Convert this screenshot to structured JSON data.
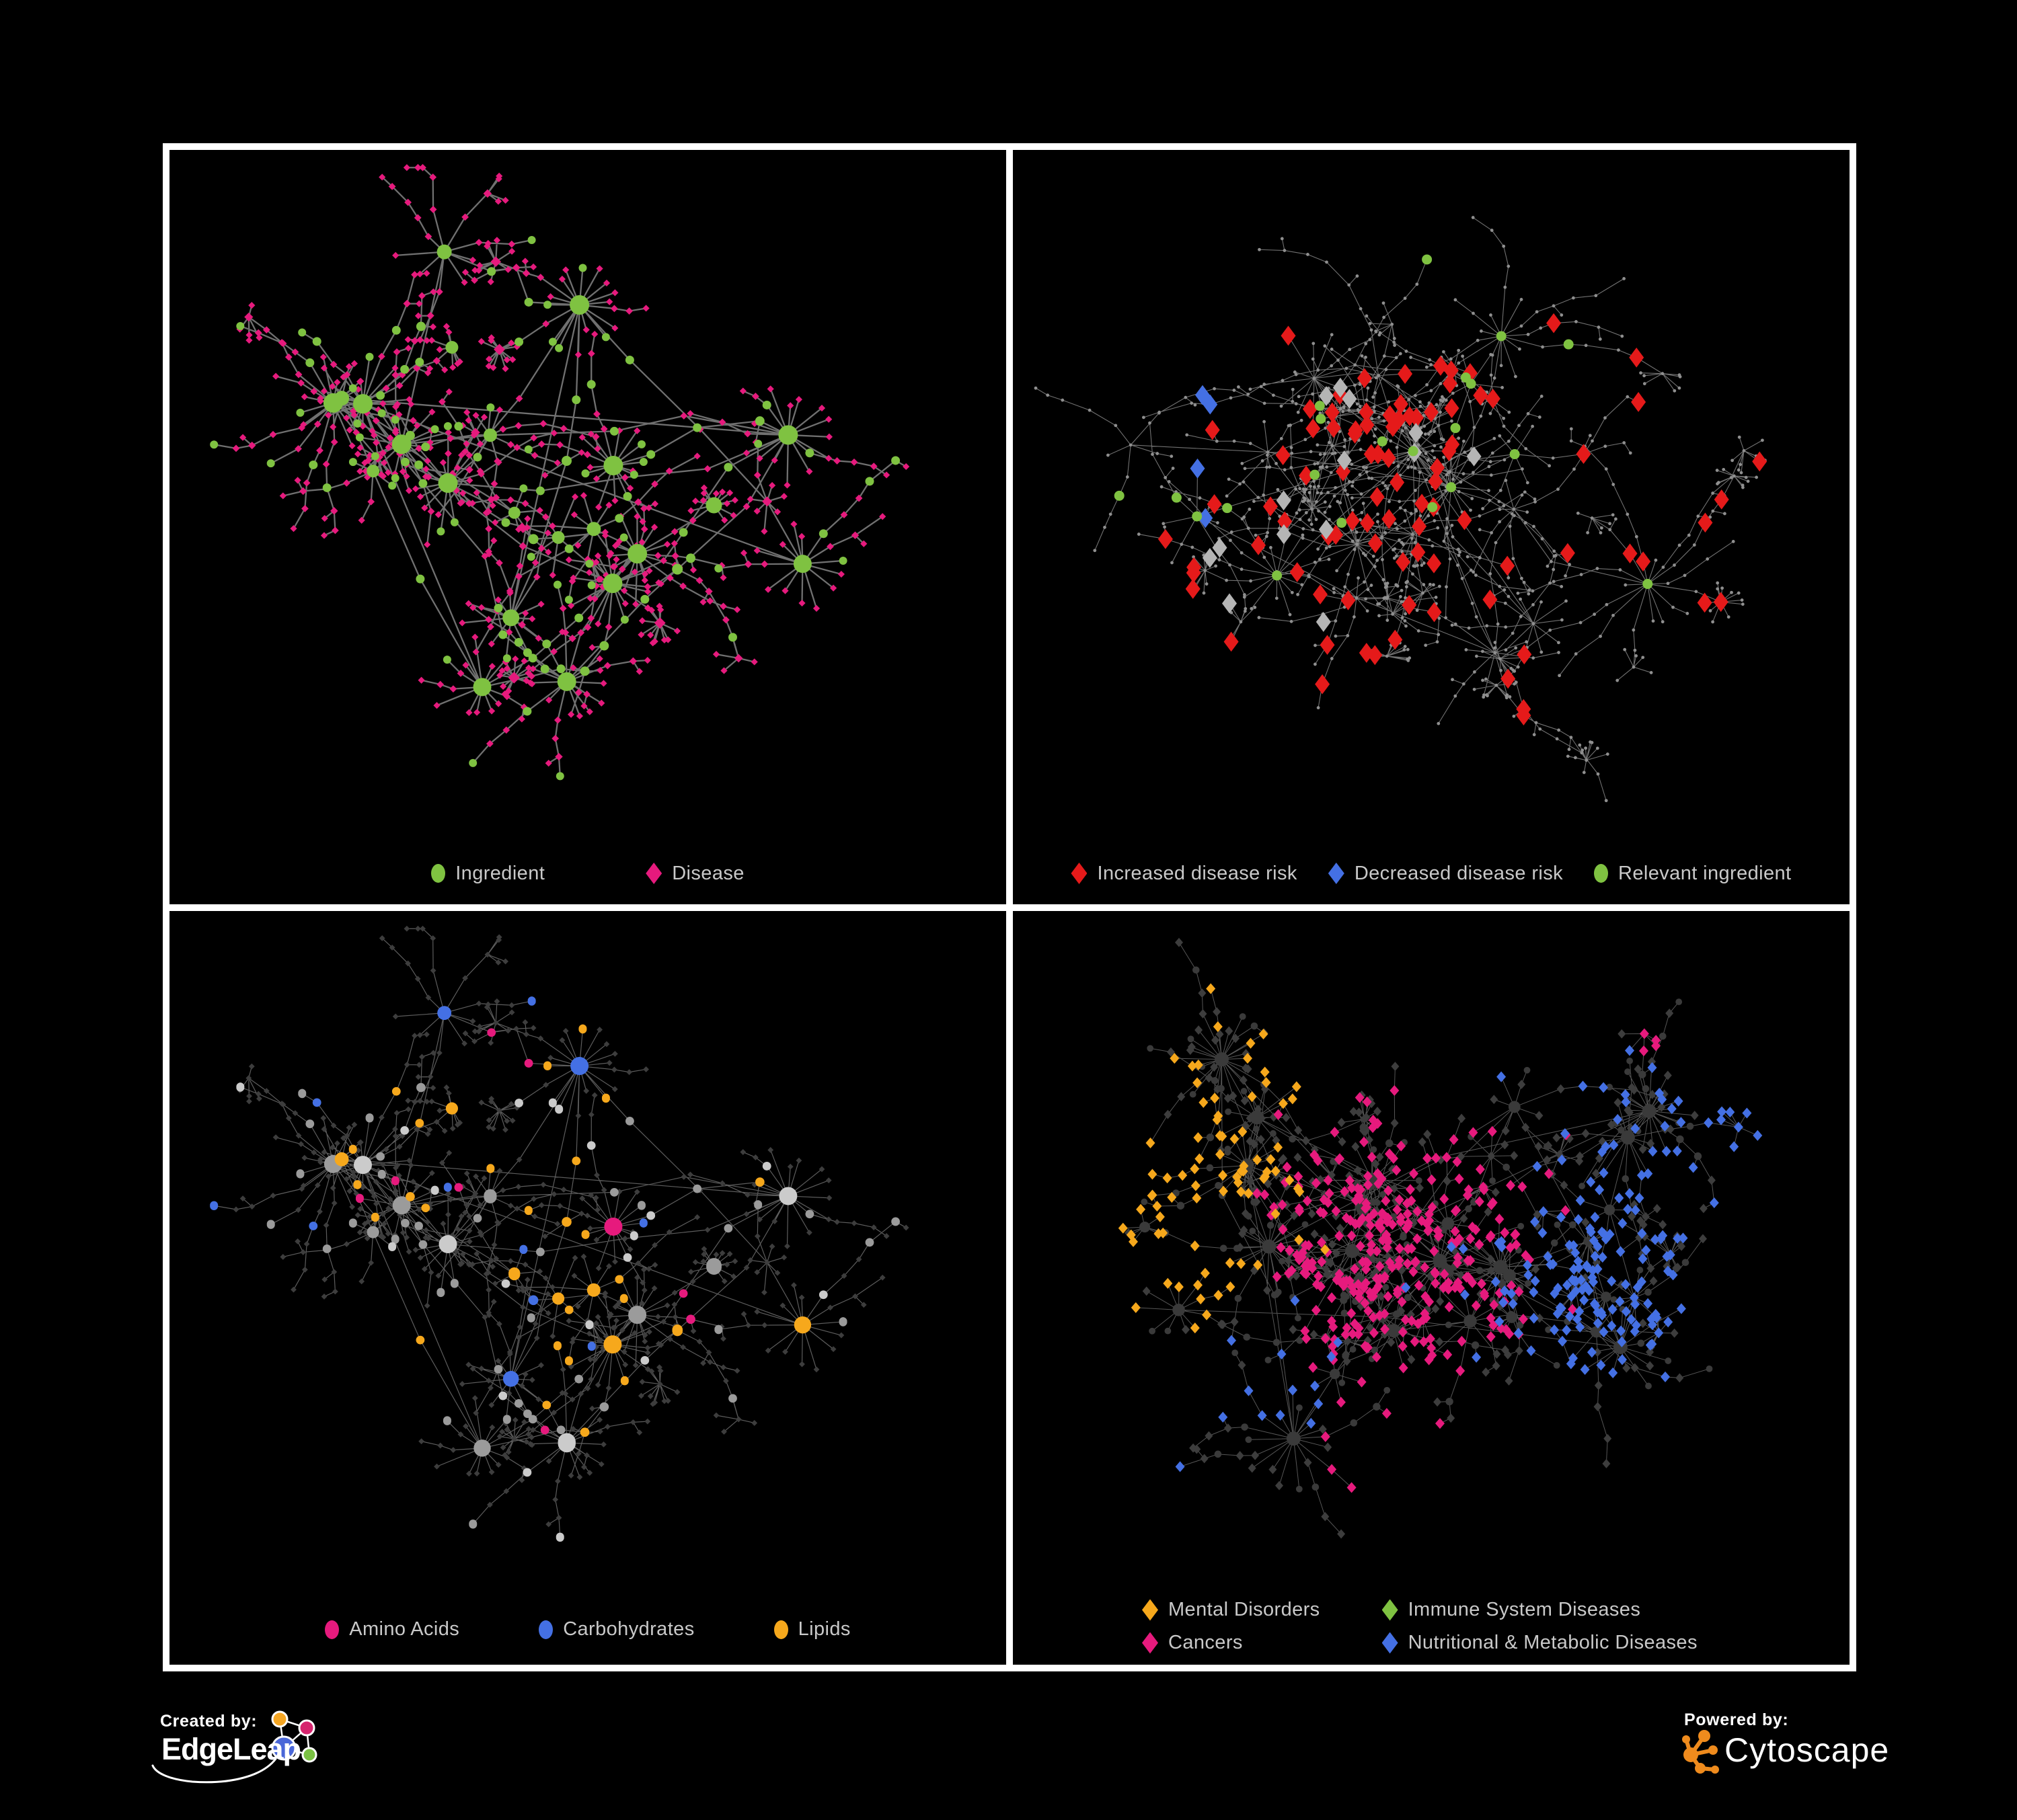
{
  "colors": {
    "background": "#000000",
    "frame": "#ffffff",
    "panel_bg": "#000000",
    "legend_text": "#c9c9c9",
    "green": "#7fc241",
    "pink": "#e61a7d",
    "red": "#e51a1a",
    "blue": "#4470e4",
    "silver": "#b5b5b5",
    "orange": "#f6a81c",
    "gray": "#9b9b9b",
    "light_gray": "#cbcbcb",
    "dark_diamond": "#3d3d3d",
    "dark_circle": "#3a3a3a",
    "dot": "#8f8f8f",
    "edge_dark": "#707070",
    "edge_light": "#8f8f8f"
  },
  "panels": [
    {
      "name": "ingredient-disease-network",
      "legend": [
        {
          "label": "Ingredient",
          "shape": "circle",
          "color": "green"
        },
        {
          "label": "Disease",
          "shape": "diamond",
          "color": "pink"
        }
      ]
    },
    {
      "name": "disease-risk-network",
      "legend": [
        {
          "label": "Increased disease risk",
          "shape": "diamond",
          "color": "red"
        },
        {
          "label": "Decreased disease risk",
          "shape": "diamond",
          "color": "blue"
        },
        {
          "label": "Relevant ingredient",
          "shape": "circle",
          "color": "green"
        }
      ]
    },
    {
      "name": "nutrient-class-network",
      "legend": [
        {
          "label": "Amino Acids",
          "shape": "circle",
          "color": "pink"
        },
        {
          "label": "Carbohydrates",
          "shape": "circle",
          "color": "blue"
        },
        {
          "label": "Lipids",
          "shape": "circle",
          "color": "orange"
        }
      ]
    },
    {
      "name": "disease-class-network",
      "legend": [
        {
          "label": "Mental Disorders",
          "shape": "diamond",
          "color": "orange"
        },
        {
          "label": "Immune System Diseases",
          "shape": "diamond",
          "color": "green"
        },
        {
          "label": "Cancers",
          "shape": "diamond",
          "color": "pink"
        },
        {
          "label": "Nutritional & Metabolic Diseases",
          "shape": "diamond",
          "color": "blue"
        }
      ]
    }
  ],
  "branding": {
    "created_by_label": "Created by:",
    "edgeleap_name": "EdgeLeap",
    "powered_by_label": "Powered by:",
    "cytoscape_name": "Cytoscape",
    "edgeleap_glyph": {
      "orange": "#f5a623",
      "pink": "#d6246e",
      "blue": "#4a67d8",
      "green": "#7ac143"
    },
    "cytoscape_orange": "#ef8b1d"
  }
}
